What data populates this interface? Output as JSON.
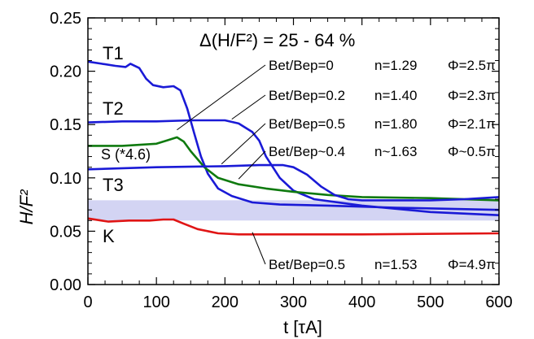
{
  "chart_data": {
    "type": "line",
    "title": "",
    "xlabel": "t [τA]",
    "ylabel": "H/F²",
    "xlim": [
      0,
      600
    ],
    "ylim": [
      0.0,
      0.25
    ],
    "xticks": [
      0,
      100,
      200,
      300,
      400,
      500,
      600
    ],
    "yticks": [
      0.0,
      0.05,
      0.1,
      0.15,
      0.2,
      0.25
    ],
    "xtick_labels": [
      "0",
      "100",
      "200",
      "300",
      "400",
      "500",
      "600"
    ],
    "ytick_labels": [
      "0.00",
      "0.05",
      "0.10",
      "0.15",
      "0.20",
      "0.25"
    ],
    "grid": false,
    "band": {
      "y0": 0.06,
      "y1": 0.079,
      "color": "#d3d4f3"
    },
    "headline": "Δ(H/F²) = 25 - 64 %",
    "series": [
      {
        "name": "T1",
        "color": "#1a1ad6",
        "x": [
          0,
          20,
          40,
          55,
          62,
          75,
          85,
          95,
          110,
          125,
          135,
          145,
          155,
          165,
          175,
          190,
          210,
          240,
          280,
          350,
          450,
          600
        ],
        "y": [
          0.209,
          0.207,
          0.205,
          0.204,
          0.207,
          0.203,
          0.193,
          0.187,
          0.185,
          0.186,
          0.182,
          0.165,
          0.142,
          0.12,
          0.104,
          0.09,
          0.083,
          0.077,
          0.075,
          0.074,
          0.072,
          0.07
        ]
      },
      {
        "name": "T2",
        "color": "#1a1ad6",
        "x": [
          0,
          50,
          100,
          150,
          200,
          220,
          240,
          250,
          260,
          280,
          300,
          330,
          400,
          500,
          600
        ],
        "y": [
          0.152,
          0.153,
          0.153,
          0.154,
          0.154,
          0.151,
          0.143,
          0.135,
          0.12,
          0.1,
          0.088,
          0.08,
          0.074,
          0.068,
          0.065
        ]
      },
      {
        "name": "S (*4.6)",
        "color": "#0f7a0f",
        "x": [
          0,
          50,
          100,
          115,
          130,
          140,
          150,
          170,
          190,
          220,
          260,
          300,
          350,
          400,
          500,
          600
        ],
        "y": [
          0.13,
          0.13,
          0.132,
          0.135,
          0.138,
          0.134,
          0.125,
          0.11,
          0.1,
          0.094,
          0.09,
          0.087,
          0.084,
          0.082,
          0.081,
          0.079
        ]
      },
      {
        "name": "T3",
        "color": "#1a1ad6",
        "x": [
          0,
          100,
          200,
          250,
          285,
          300,
          320,
          340,
          360,
          380,
          400,
          450,
          500,
          550,
          600
        ],
        "y": [
          0.108,
          0.11,
          0.111,
          0.112,
          0.112,
          0.11,
          0.103,
          0.092,
          0.084,
          0.08,
          0.079,
          0.079,
          0.079,
          0.08,
          0.082
        ]
      },
      {
        "name": "K",
        "color": "#e01515",
        "x": [
          0,
          20,
          30,
          60,
          90,
          110,
          125,
          140,
          160,
          190,
          220,
          300,
          400,
          600
        ],
        "y": [
          0.062,
          0.06,
          0.059,
          0.06,
          0.06,
          0.061,
          0.061,
          0.057,
          0.052,
          0.048,
          0.047,
          0.047,
          0.047,
          0.048
        ]
      }
    ],
    "series_labels": [
      "T1",
      "T2",
      "S (*4.6)",
      "T3",
      "K"
    ],
    "annotations": [
      {
        "ratio": "Bet/Bep=0",
        "n": "n=1.29",
        "phi": "Φ=2.5π",
        "target": [
          130,
          0.145
        ]
      },
      {
        "ratio": "Bet/Bep=0.2",
        "n": "n=1.40",
        "phi": "Φ=2.3π",
        "target": [
          210,
          0.155
        ]
      },
      {
        "ratio": "Bet/Bep=0.5",
        "n": "n=1.80",
        "phi": "Φ=2.1π",
        "target": [
          195,
          0.113
        ]
      },
      {
        "ratio": "Bet/Bep~0.4",
        "n": "n~1.63",
        "phi": "Φ~0.5π",
        "target": [
          220,
          0.099
        ]
      },
      {
        "ratio": "Bet/Bep=0.5",
        "n": "n=1.53",
        "phi": "Φ=4.9π",
        "target": [
          240,
          0.049
        ]
      }
    ]
  }
}
